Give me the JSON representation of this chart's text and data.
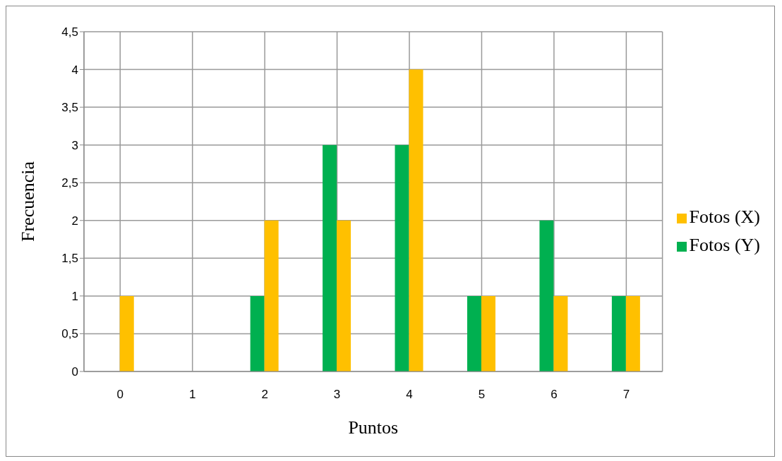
{
  "chart_data": {
    "type": "bar",
    "xlabel": "Puntos",
    "ylabel": "Frecuencia",
    "categories": [
      "0",
      "1",
      "2",
      "3",
      "4",
      "5",
      "6",
      "7"
    ],
    "series": [
      {
        "name": "Fotos (Y)",
        "color": "#00b050",
        "values": [
          0,
          0,
          1,
          3,
          3,
          1,
          2,
          1
        ]
      },
      {
        "name": "Fotos (X)",
        "color": "#ffc000",
        "values": [
          1,
          0,
          2,
          2,
          4,
          1,
          1,
          1
        ]
      }
    ],
    "ylim": [
      0,
      4.5
    ],
    "yticks": [
      0,
      {
        "value": 0.5,
        "label": "0,5"
      },
      1,
      {
        "value": 1.5,
        "label": "1,5"
      },
      2,
      {
        "value": 2.5,
        "label": "2,5"
      },
      3,
      {
        "value": 3.5,
        "label": "3,5"
      },
      4,
      {
        "value": 4.5,
        "label": "4,5"
      }
    ],
    "grid": true,
    "legend": "right"
  }
}
